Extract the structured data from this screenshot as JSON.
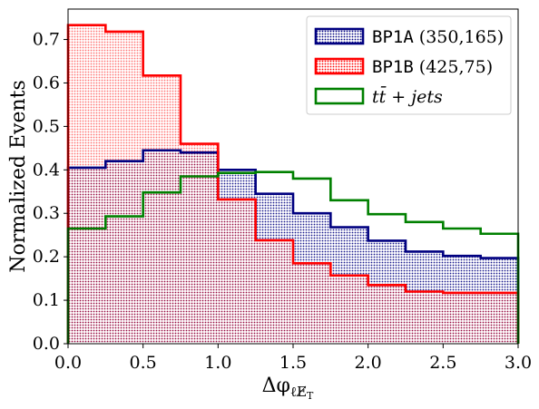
{
  "chart_data": {
    "type": "step-histogram",
    "xlabel": "Δφ",
    "xlabel_sub": "ℓE̸",
    "xlabel_subsub": "T",
    "ylabel": "Normalized Events",
    "xlim": [
      0.0,
      3.0
    ],
    "ylim": [
      0.0,
      0.77
    ],
    "xticks": [
      "0.0",
      "0.5",
      "1.0",
      "1.5",
      "2.0",
      "2.5",
      "3.0"
    ],
    "yticks": [
      "0.0",
      "0.1",
      "0.2",
      "0.3",
      "0.4",
      "0.5",
      "0.6",
      "0.7"
    ],
    "bin_edges": [
      0.0,
      0.25,
      0.5,
      0.75,
      1.0,
      1.25,
      1.5,
      1.75,
      2.0,
      2.25,
      2.5,
      2.75,
      3.0
    ],
    "legend_position": "top-right",
    "series": [
      {
        "key": "bp1a",
        "name_code": "BP1A",
        "name_rest": "(350,165)",
        "color": "#000080",
        "fill": "hatched-dots",
        "values": [
          0.405,
          0.42,
          0.445,
          0.44,
          0.4,
          0.345,
          0.3,
          0.268,
          0.237,
          0.212,
          0.202,
          0.197
        ]
      },
      {
        "key": "bp1b",
        "name_code": "BP1B",
        "name_rest": "(425,75)",
        "color": "#ff0000",
        "fill": "hatched-dots",
        "values": [
          0.733,
          0.718,
          0.617,
          0.46,
          0.332,
          0.238,
          0.185,
          0.157,
          0.135,
          0.12,
          0.117,
          0.117
        ]
      },
      {
        "key": "ttbar",
        "name_math": "tt̄ + jets",
        "color": "#008000",
        "fill": "none",
        "values": [
          0.265,
          0.293,
          0.348,
          0.385,
          0.393,
          0.395,
          0.38,
          0.33,
          0.298,
          0.28,
          0.265,
          0.253
        ]
      }
    ]
  }
}
